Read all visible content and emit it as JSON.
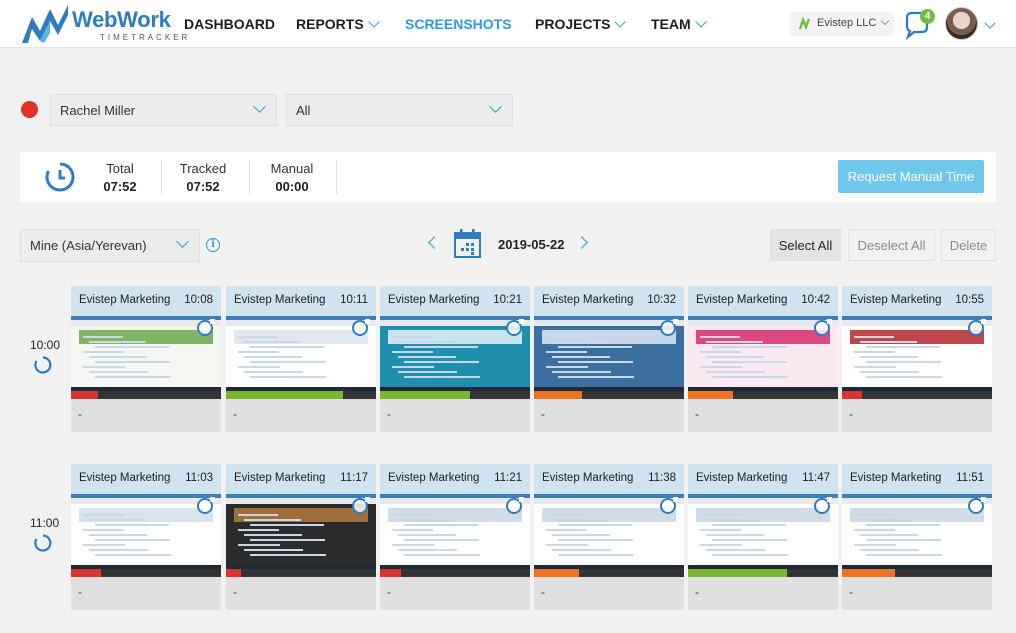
{
  "header": {
    "logo": {
      "name": "WebWork",
      "sub": "TIMETRACKER"
    },
    "nav": [
      {
        "label": "DASHBOARD",
        "has_dropdown": false,
        "active": false
      },
      {
        "label": "REPORTS",
        "has_dropdown": true,
        "active": false
      },
      {
        "label": "SCREENSHOTS",
        "has_dropdown": false,
        "active": true
      },
      {
        "label": "PROJECTS",
        "has_dropdown": true,
        "active": false
      },
      {
        "label": "TEAM",
        "has_dropdown": true,
        "active": false
      }
    ],
    "company": "Evistep  LLC",
    "notifications_count": "4"
  },
  "filters": {
    "user": "Rachel Miller",
    "project": "All"
  },
  "stats": {
    "total": {
      "label": "Total",
      "value": "07:52"
    },
    "tracked": {
      "label": "Tracked",
      "value": "07:52"
    },
    "manual": {
      "label": "Manual",
      "value": "00:00"
    },
    "request_button": "Request Manual Time"
  },
  "toolbar": {
    "timezone": "Mine (Asia/Yerevan)",
    "date": "2019-05-22",
    "select_all": "Select All",
    "deselect_all": "Deselect All",
    "delete": "Delete"
  },
  "hours": [
    {
      "label": "10:00",
      "cards": [
        {
          "title": "Evistep  Marketing",
          "time": "10:08",
          "activity": 0.18,
          "activity_color": "#d9362f",
          "note": "-"
        },
        {
          "title": "Evistep  Marketing",
          "time": "10:11",
          "activity": 0.78,
          "activity_color": "#7ab730",
          "note": "-"
        },
        {
          "title": "Evistep  Marketing",
          "time": "10:21",
          "activity": 0.6,
          "activity_color": "#7ab730",
          "note": "-"
        },
        {
          "title": "Evistep  Marketing",
          "time": "10:32",
          "activity": 0.32,
          "activity_color": "#ec7424",
          "note": "-"
        },
        {
          "title": "Evistep  Marketing",
          "time": "10:42",
          "activity": 0.3,
          "activity_color": "#ec7424",
          "note": "-"
        },
        {
          "title": "Evistep  Marketing",
          "time": "10:55",
          "activity": 0.13,
          "activity_color": "#d9362f",
          "note": "-"
        }
      ]
    },
    {
      "label": "11:00",
      "cards": [
        {
          "title": "Evistep  Marketing",
          "time": "11:03",
          "activity": 0.2,
          "activity_color": "#d9362f",
          "note": "-"
        },
        {
          "title": "Evistep  Marketing",
          "time": "11:17",
          "activity": 0.1,
          "activity_color": "#d9362f",
          "note": "-"
        },
        {
          "title": "Evistep  Marketing",
          "time": "11:21",
          "activity": 0.14,
          "activity_color": "#d9362f",
          "note": "-"
        },
        {
          "title": "Evistep  Marketing",
          "time": "11:38",
          "activity": 0.3,
          "activity_color": "#ec7424",
          "note": "-"
        },
        {
          "title": "Evistep  Marketing",
          "time": "11:47",
          "activity": 0.66,
          "activity_color": "#7ab730",
          "note": "-"
        },
        {
          "title": "Evistep  Marketing",
          "time": "11:51",
          "activity": 0.35,
          "activity_color": "#ec7424",
          "note": "-"
        }
      ]
    }
  ],
  "colors": {
    "accent": "#2d9cdb",
    "card_header": "#cfe3f1",
    "status_dot": "#e0322b",
    "request_button": "#6fc7ec"
  }
}
